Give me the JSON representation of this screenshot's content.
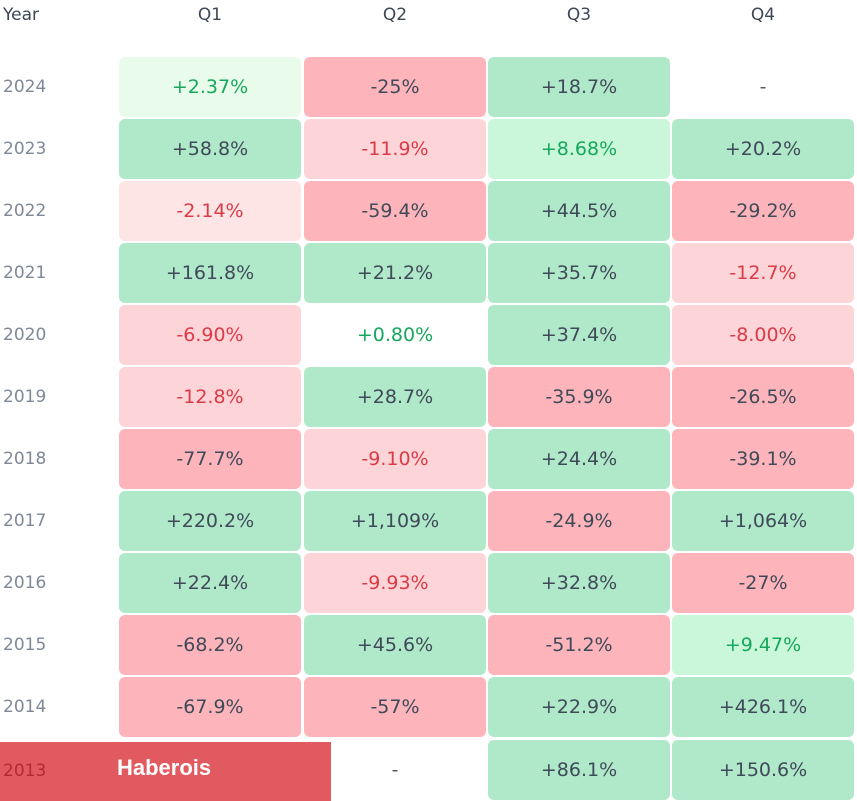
{
  "header": {
    "year_label": "Year",
    "quarters": [
      "Q1",
      "Q2",
      "Q3",
      "Q4"
    ]
  },
  "rows": [
    {
      "year": "2024",
      "cells": [
        {
          "text": "+2.37%",
          "tone": "pos",
          "bg": "#e9fcec"
        },
        {
          "text": "-25%",
          "tone": "dark",
          "bg": "#fdb4bb"
        },
        {
          "text": "+18.7%",
          "tone": "dark",
          "bg": "#b0e8ca"
        },
        {
          "text": "-",
          "tone": "dash",
          "bg": ""
        }
      ]
    },
    {
      "year": "2023",
      "cells": [
        {
          "text": "+58.8%",
          "tone": "dark",
          "bg": "#b0e8ca"
        },
        {
          "text": "-11.9%",
          "tone": "neg",
          "bg": "#fdd5d8"
        },
        {
          "text": "+8.68%",
          "tone": "pos",
          "bg": "#caf7da"
        },
        {
          "text": "+20.2%",
          "tone": "dark",
          "bg": "#b0e8ca"
        }
      ]
    },
    {
      "year": "2022",
      "cells": [
        {
          "text": "-2.14%",
          "tone": "neg",
          "bg": "#fde5e6"
        },
        {
          "text": "-59.4%",
          "tone": "dark",
          "bg": "#fdb4bb"
        },
        {
          "text": "+44.5%",
          "tone": "dark",
          "bg": "#b0e8ca"
        },
        {
          "text": "-29.2%",
          "tone": "dark",
          "bg": "#fdb4bb"
        }
      ]
    },
    {
      "year": "2021",
      "cells": [
        {
          "text": "+161.8%",
          "tone": "dark",
          "bg": "#b0e8ca"
        },
        {
          "text": "+21.2%",
          "tone": "dark",
          "bg": "#b0e8ca"
        },
        {
          "text": "+35.7%",
          "tone": "dark",
          "bg": "#b0e8ca"
        },
        {
          "text": "-12.7%",
          "tone": "neg",
          "bg": "#fdd5d8"
        }
      ]
    },
    {
      "year": "2020",
      "cells": [
        {
          "text": "-6.90%",
          "tone": "neg",
          "bg": "#fdd5d8"
        },
        {
          "text": "+0.80%",
          "tone": "pos",
          "bg": ""
        },
        {
          "text": "+37.4%",
          "tone": "dark",
          "bg": "#b0e8ca"
        },
        {
          "text": "-8.00%",
          "tone": "neg",
          "bg": "#fdd5d8"
        }
      ]
    },
    {
      "year": "2019",
      "cells": [
        {
          "text": "-12.8%",
          "tone": "neg",
          "bg": "#fdd5d8"
        },
        {
          "text": "+28.7%",
          "tone": "dark",
          "bg": "#b0e8ca"
        },
        {
          "text": "-35.9%",
          "tone": "dark",
          "bg": "#fdb4bb"
        },
        {
          "text": "-26.5%",
          "tone": "dark",
          "bg": "#fdb4bb"
        }
      ]
    },
    {
      "year": "2018",
      "cells": [
        {
          "text": "-77.7%",
          "tone": "dark",
          "bg": "#fdb4bb"
        },
        {
          "text": "-9.10%",
          "tone": "neg",
          "bg": "#fdd5d8"
        },
        {
          "text": "+24.4%",
          "tone": "dark",
          "bg": "#b0e8ca"
        },
        {
          "text": "-39.1%",
          "tone": "dark",
          "bg": "#fdb4bb"
        }
      ]
    },
    {
      "year": "2017",
      "cells": [
        {
          "text": "+220.2%",
          "tone": "dark",
          "bg": "#b0e8ca"
        },
        {
          "text": "+1,109%",
          "tone": "dark",
          "bg": "#b0e8ca"
        },
        {
          "text": "-24.9%",
          "tone": "dark",
          "bg": "#fdb4bb"
        },
        {
          "text": "+1,064%",
          "tone": "dark",
          "bg": "#b0e8ca"
        }
      ]
    },
    {
      "year": "2016",
      "cells": [
        {
          "text": "+22.4%",
          "tone": "dark",
          "bg": "#b0e8ca"
        },
        {
          "text": "-9.93%",
          "tone": "neg",
          "bg": "#fdd5d8"
        },
        {
          "text": "+32.8%",
          "tone": "dark",
          "bg": "#b0e8ca"
        },
        {
          "text": "-27%",
          "tone": "dark",
          "bg": "#fdb4bb"
        }
      ]
    },
    {
      "year": "2015",
      "cells": [
        {
          "text": "-68.2%",
          "tone": "dark",
          "bg": "#fdb4bb"
        },
        {
          "text": "+45.6%",
          "tone": "dark",
          "bg": "#b0e8ca"
        },
        {
          "text": "-51.2%",
          "tone": "dark",
          "bg": "#fdb4bb"
        },
        {
          "text": "+9.47%",
          "tone": "pos",
          "bg": "#caf7da"
        }
      ]
    },
    {
      "year": "2014",
      "cells": [
        {
          "text": "-67.9%",
          "tone": "dark",
          "bg": "#fdb4bb"
        },
        {
          "text": "-57%",
          "tone": "dark",
          "bg": "#fdb4bb"
        },
        {
          "text": "+22.9%",
          "tone": "dark",
          "bg": "#b0e8ca"
        },
        {
          "text": "+426.1%",
          "tone": "dark",
          "bg": "#b0e8ca"
        }
      ]
    },
    {
      "year": "2013",
      "cells": [
        {
          "text": "",
          "tone": "dark",
          "bg": ""
        },
        {
          "text": "-",
          "tone": "dash",
          "bg": ""
        },
        {
          "text": "+86.1%",
          "tone": "dark",
          "bg": "#b0e8ca"
        },
        {
          "text": "+150.6%",
          "tone": "dark",
          "bg": "#b0e8ca"
        }
      ]
    }
  ],
  "banner": {
    "brand": "Haberois",
    "color": "#e05a5f"
  }
}
